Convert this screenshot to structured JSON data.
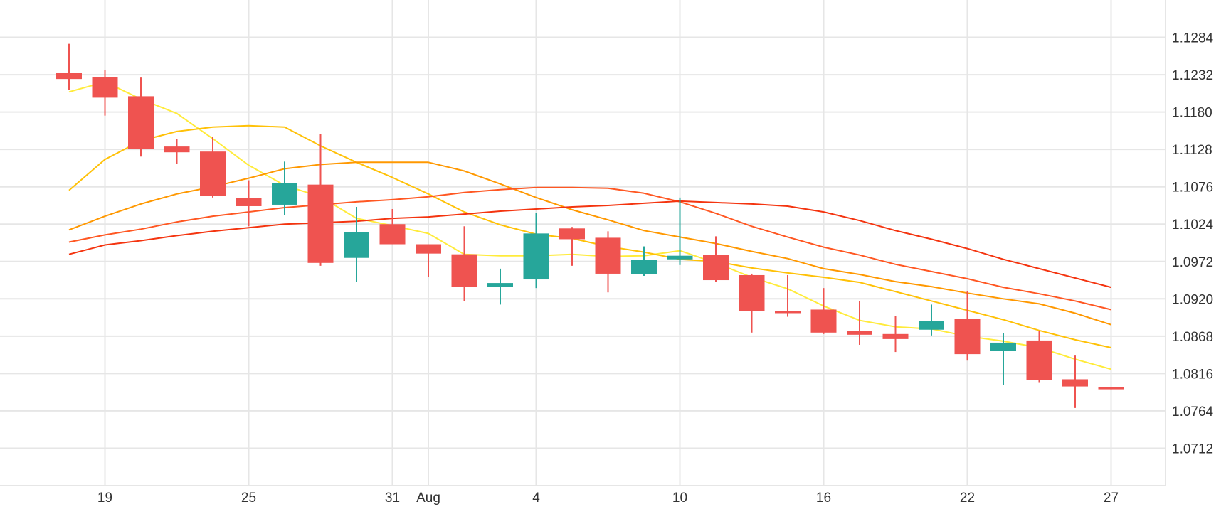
{
  "chart_data": {
    "type": "candlestick",
    "title": "",
    "xlabel": "",
    "ylabel": "",
    "ylim": [
      1.066,
      1.1336
    ],
    "y_ticks": [
      "1.1284",
      "1.1232",
      "1.1180",
      "1.1128",
      "1.1076",
      "1.1024",
      "1.0972",
      "1.0920",
      "1.0868",
      "1.0816",
      "1.0764",
      "1.0712"
    ],
    "x_ticks": [
      {
        "label": "19",
        "index": 1
      },
      {
        "label": "25",
        "index": 5
      },
      {
        "label": "31",
        "index": 9
      },
      {
        "label": "Aug",
        "index": 10
      },
      {
        "label": "4",
        "index": 13
      },
      {
        "label": "10",
        "index": 17
      },
      {
        "label": "16",
        "index": 21
      },
      {
        "label": "22",
        "index": 25
      },
      {
        "label": "27",
        "index": 29
      }
    ],
    "colors": {
      "up": "#26a69a",
      "down": "#ef5350",
      "grid": "#e6e6e6"
    },
    "candles": [
      {
        "o": 1.1235,
        "h": 1.1275,
        "l": 1.1211,
        "c": 1.1226
      },
      {
        "o": 1.1229,
        "h": 1.1238,
        "l": 1.1175,
        "c": 1.12
      },
      {
        "o": 1.1202,
        "h": 1.1228,
        "l": 1.1118,
        "c": 1.1129
      },
      {
        "o": 1.1132,
        "h": 1.1143,
        "l": 1.1108,
        "c": 1.1124
      },
      {
        "o": 1.1125,
        "h": 1.1145,
        "l": 1.1061,
        "c": 1.1063
      },
      {
        "o": 1.106,
        "h": 1.1085,
        "l": 1.1021,
        "c": 1.1049
      },
      {
        "o": 1.1051,
        "h": 1.1111,
        "l": 1.1037,
        "c": 1.1081
      },
      {
        "o": 1.1079,
        "h": 1.1149,
        "l": 1.0966,
        "c": 1.097
      },
      {
        "o": 1.0977,
        "h": 1.1048,
        "l": 1.0944,
        "c": 1.1013
      },
      {
        "o": 1.1024,
        "h": 1.1045,
        "l": 1.0996,
        "c": 1.0996
      },
      {
        "o": 1.0996,
        "h": 1.0996,
        "l": 1.0951,
        "c": 1.0983
      },
      {
        "o": 1.0982,
        "h": 1.1021,
        "l": 1.0917,
        "c": 1.0937
      },
      {
        "o": 1.0937,
        "h": 1.0962,
        "l": 1.0912,
        "c": 1.0942
      },
      {
        "o": 1.0947,
        "h": 1.104,
        "l": 1.0935,
        "c": 1.1011
      },
      {
        "o": 1.1018,
        "h": 1.102,
        "l": 1.0966,
        "c": 1.1003
      },
      {
        "o": 1.1005,
        "h": 1.1014,
        "l": 1.0929,
        "c": 1.0955
      },
      {
        "o": 1.0954,
        "h": 1.0993,
        "l": 1.0952,
        "c": 1.0974
      },
      {
        "o": 1.0975,
        "h": 1.1061,
        "l": 1.0967,
        "c": 1.098
      },
      {
        "o": 1.0981,
        "h": 1.1007,
        "l": 1.0944,
        "c": 1.0946
      },
      {
        "o": 1.0953,
        "h": 1.0955,
        "l": 1.0873,
        "c": 1.0903
      },
      {
        "o": 1.0903,
        "h": 1.0953,
        "l": 1.0895,
        "c": 1.0901
      },
      {
        "o": 1.0905,
        "h": 1.0935,
        "l": 1.0871,
        "c": 1.0873
      },
      {
        "o": 1.0875,
        "h": 1.0917,
        "l": 1.0856,
        "c": 1.087
      },
      {
        "o": 1.0871,
        "h": 1.0896,
        "l": 1.0846,
        "c": 1.0864
      },
      {
        "o": 1.0877,
        "h": 1.0912,
        "l": 1.0869,
        "c": 1.0889
      },
      {
        "o": 1.0892,
        "h": 1.0931,
        "l": 1.0834,
        "c": 1.0843
      },
      {
        "o": 1.0848,
        "h": 1.0872,
        "l": 1.08,
        "c": 1.0859
      },
      {
        "o": 1.0862,
        "h": 1.0875,
        "l": 1.0803,
        "c": 1.0807
      },
      {
        "o": 1.0808,
        "h": 1.0841,
        "l": 1.0768,
        "c": 1.0798
      },
      {
        "o": 1.0797,
        "h": 1.0797,
        "l": 1.0794,
        "c": 1.0795
      }
    ],
    "moving_averages": [
      {
        "color": "#ffeb3b",
        "points": [
          [
            0,
            1.1208
          ],
          [
            1,
            1.1222
          ],
          [
            2,
            1.1198
          ],
          [
            3,
            1.1178
          ],
          [
            4,
            1.1143
          ],
          [
            5,
            1.1106
          ],
          [
            6,
            1.1078
          ],
          [
            7,
            1.1062
          ],
          [
            8,
            1.1032
          ],
          [
            9,
            1.1022
          ],
          [
            10,
            1.1011
          ],
          [
            11,
            1.0982
          ],
          [
            12,
            1.098
          ],
          [
            13,
            1.098
          ],
          [
            14,
            1.0982
          ],
          [
            15,
            1.0979
          ],
          [
            16,
            1.098
          ],
          [
            17,
            1.0987
          ],
          [
            18,
            1.097
          ],
          [
            19,
            1.095
          ],
          [
            20,
            1.0934
          ],
          [
            21,
            1.091
          ],
          [
            22,
            1.089
          ],
          [
            23,
            1.0881
          ],
          [
            24,
            1.0878
          ],
          [
            25,
            1.0868
          ],
          [
            26,
            1.0861
          ],
          [
            27,
            1.0852
          ],
          [
            28,
            1.0836
          ],
          [
            29,
            1.0822
          ]
        ]
      },
      {
        "color": "#ffc107",
        "points": [
          [
            0,
            1.1071
          ],
          [
            1,
            1.1114
          ],
          [
            2,
            1.114
          ],
          [
            3,
            1.1153
          ],
          [
            4,
            1.1159
          ],
          [
            5,
            1.1161
          ],
          [
            6,
            1.1159
          ],
          [
            7,
            1.1133
          ],
          [
            8,
            1.111
          ],
          [
            9,
            1.1089
          ],
          [
            10,
            1.1066
          ],
          [
            11,
            1.1041
          ],
          [
            12,
            1.1023
          ],
          [
            13,
            1.101
          ],
          [
            14,
            1.1004
          ],
          [
            15,
            1.0993
          ],
          [
            16,
            1.0985
          ],
          [
            17,
            1.0975
          ],
          [
            18,
            1.0972
          ],
          [
            19,
            1.0963
          ],
          [
            20,
            1.0956
          ],
          [
            21,
            1.095
          ],
          [
            22,
            1.0943
          ],
          [
            23,
            1.093
          ],
          [
            24,
            1.0917
          ],
          [
            25,
            1.0904
          ],
          [
            26,
            1.0891
          ],
          [
            27,
            1.0876
          ],
          [
            28,
            1.0863
          ],
          [
            29,
            1.0852
          ]
        ]
      },
      {
        "color": "#ff9800",
        "points": [
          [
            0,
            1.1016
          ],
          [
            1,
            1.1035
          ],
          [
            2,
            1.1052
          ],
          [
            3,
            1.1066
          ],
          [
            4,
            1.1076
          ],
          [
            5,
            1.1088
          ],
          [
            6,
            1.1101
          ],
          [
            7,
            1.1107
          ],
          [
            8,
            1.111
          ],
          [
            9,
            1.111
          ],
          [
            10,
            1.111
          ],
          [
            11,
            1.1098
          ],
          [
            12,
            1.108
          ],
          [
            13,
            1.1061
          ],
          [
            14,
            1.1044
          ],
          [
            15,
            1.103
          ],
          [
            16,
            1.1015
          ],
          [
            17,
            1.1006
          ],
          [
            18,
            1.0997
          ],
          [
            19,
            1.0986
          ],
          [
            20,
            1.0976
          ],
          [
            21,
            1.0962
          ],
          [
            22,
            1.0954
          ],
          [
            23,
            1.0944
          ],
          [
            24,
            1.0937
          ],
          [
            25,
            1.0928
          ],
          [
            26,
            1.092
          ],
          [
            27,
            1.0913
          ],
          [
            28,
            1.09
          ],
          [
            29,
            1.0884
          ]
        ]
      },
      {
        "color": "#ff5722",
        "points": [
          [
            0,
            1.0999
          ],
          [
            1,
            1.1009
          ],
          [
            2,
            1.1017
          ],
          [
            3,
            1.1027
          ],
          [
            4,
            1.1035
          ],
          [
            5,
            1.1041
          ],
          [
            6,
            1.1047
          ],
          [
            7,
            1.1051
          ],
          [
            8,
            1.1055
          ],
          [
            9,
            1.1058
          ],
          [
            10,
            1.1062
          ],
          [
            11,
            1.1068
          ],
          [
            12,
            1.1072
          ],
          [
            13,
            1.1075
          ],
          [
            14,
            1.1075
          ],
          [
            15,
            1.1074
          ],
          [
            16,
            1.1067
          ],
          [
            17,
            1.1055
          ],
          [
            18,
            1.1039
          ],
          [
            19,
            1.1021
          ],
          [
            20,
            1.1006
          ],
          [
            21,
            1.0992
          ],
          [
            22,
            1.0981
          ],
          [
            23,
            1.0968
          ],
          [
            24,
            1.0958
          ],
          [
            25,
            1.0948
          ],
          [
            26,
            1.0936
          ],
          [
            27,
            1.0927
          ],
          [
            28,
            1.0917
          ],
          [
            29,
            1.0905
          ]
        ]
      },
      {
        "color": "#f4340f",
        "points": [
          [
            0,
            1.0982
          ],
          [
            1,
            1.0995
          ],
          [
            2,
            1.1001
          ],
          [
            3,
            1.1008
          ],
          [
            4,
            1.1014
          ],
          [
            5,
            1.1019
          ],
          [
            6,
            1.1024
          ],
          [
            7,
            1.1026
          ],
          [
            8,
            1.1028
          ],
          [
            9,
            1.1032
          ],
          [
            10,
            1.1034
          ],
          [
            11,
            1.1038
          ],
          [
            12,
            1.1042
          ],
          [
            13,
            1.1045
          ],
          [
            14,
            1.1048
          ],
          [
            15,
            1.105
          ],
          [
            16,
            1.1053
          ],
          [
            17,
            1.1056
          ],
          [
            18,
            1.1054
          ],
          [
            19,
            1.1052
          ],
          [
            20,
            1.1049
          ],
          [
            21,
            1.1041
          ],
          [
            22,
            1.1029
          ],
          [
            23,
            1.1015
          ],
          [
            24,
            1.1003
          ],
          [
            25,
            1.099
          ],
          [
            26,
            1.0975
          ],
          [
            27,
            1.0962
          ],
          [
            28,
            1.0949
          ],
          [
            29,
            1.0936
          ]
        ]
      }
    ]
  }
}
